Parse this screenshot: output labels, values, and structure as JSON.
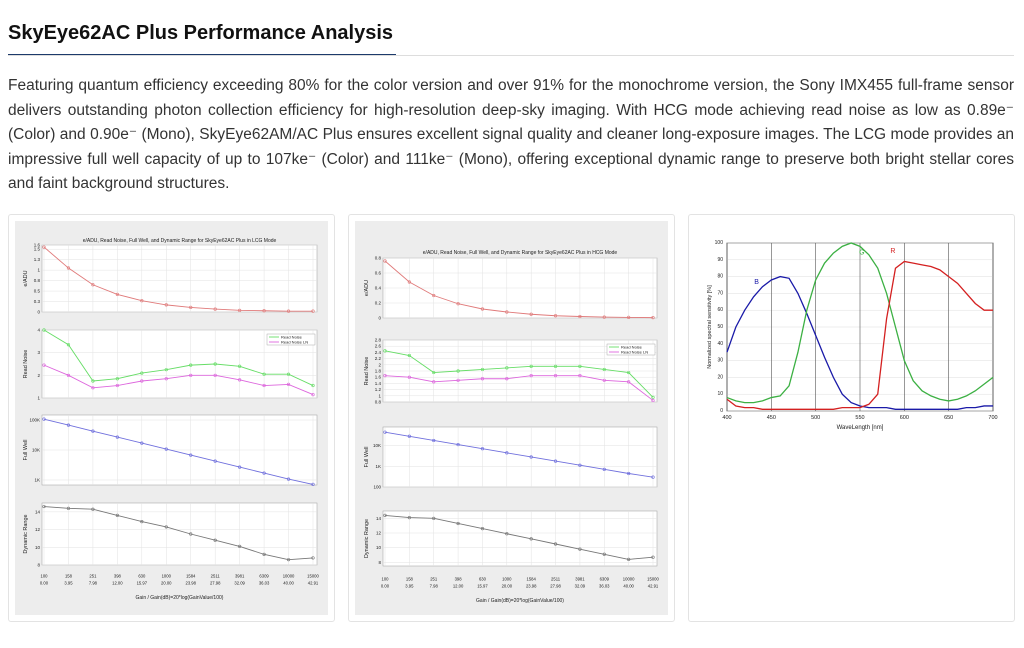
{
  "header": {
    "title": "SkyEye62AC Plus Performance Analysis"
  },
  "paragraph": "Featuring quantum efficiency exceeding 80% for the color version and over 91% for the monochrome version, the Sony IMX455 full-frame sensor delivers outstanding photon collection efficiency for high-resolution deep-sky imaging. With HCG mode achieving read noise as low as 0.89e⁻ (Color) and 0.90e⁻ (Mono), SkyEye62AM/AC Plus ensures excellent signal quality and cleaner long-exposure images. The LCG mode provides an impressive full well capacity of up to 107ke⁻ (Color) and 111ke⁻ (Mono), offering exceptional dynamic range to preserve both bright stellar cores and faint background structures.",
  "chart_data": [
    {
      "type": "multi-line",
      "title": "e/ADU, Read Noise, Full Well, and Dynamic Range for SkyEye62AC Plus in LCG Mode",
      "categories": [
        "100",
        "158",
        "251",
        "398",
        "630",
        "1000",
        "1584",
        "2511",
        "3981",
        "6309",
        "10000",
        "15000"
      ],
      "category_db": [
        "0.00",
        "3.95",
        "7.98",
        "12.00",
        "15.97",
        "20.00",
        "23.98",
        "27.98",
        "32.09",
        "36.03",
        "40.00",
        "42.91"
      ],
      "xlabel": "Gain / Gain(dB)=20*log(GainValue/100)",
      "grid": true,
      "panels": [
        {
          "ylabel": "e/ADU",
          "ylim": [
            0,
            1.6
          ],
          "yticks": [
            0,
            {
              "value": 0.25,
              "label": "0.3"
            },
            0.5,
            {
              "value": 0.75,
              "label": "0.8"
            },
            1,
            {
              "value": 1.25,
              "label": "1.3"
            },
            1.5,
            1.6
          ],
          "series": [
            {
              "color": "#e07a7a",
              "values": [
                1.55,
                1.05,
                0.65,
                0.42,
                0.27,
                0.17,
                0.11,
                0.07,
                0.04,
                0.03,
                0.02,
                0.02
              ]
            }
          ]
        },
        {
          "ylabel": "Read Noise",
          "ylim": [
            1,
            4
          ],
          "yticks": [
            1,
            2,
            3,
            4
          ],
          "series": [
            {
              "name": "Read Noise",
              "color": "#66dd66",
              "values": [
                4.0,
                3.35,
                1.75,
                1.85,
                2.1,
                2.25,
                2.45,
                2.5,
                2.4,
                2.05,
                2.05,
                1.55
              ]
            },
            {
              "name": "Read Noise LN",
              "color": "#dd66dd",
              "values": [
                2.45,
                2.0,
                1.45,
                1.55,
                1.75,
                1.85,
                2.0,
                2.0,
                1.8,
                1.55,
                1.6,
                1.15
              ]
            }
          ]
        },
        {
          "ylabel": "Full Well",
          "log": true,
          "ylim": [
            680,
            147000
          ],
          "yticks": [
            {
              "value": 1000,
              "label": "1K"
            },
            {
              "value": 10000,
              "label": "10K"
            },
            {
              "value": 100000,
              "label": "100K"
            }
          ],
          "series": [
            {
              "color": "#7070dd",
              "values": [
                107000,
                67700,
                42600,
                26900,
                17000,
                10700,
                6750,
                4260,
                2690,
                1700,
                1070,
                713
              ]
            }
          ]
        },
        {
          "ylabel": "Dynamic Range",
          "ylim": [
            8,
            15
          ],
          "yticks": [
            8,
            10,
            12,
            14
          ],
          "series": [
            {
              "color": "#777777",
              "values": [
                14.6,
                14.4,
                14.3,
                13.6,
                12.9,
                12.3,
                11.5,
                10.8,
                10.1,
                9.2,
                8.6,
                8.8
              ]
            }
          ]
        }
      ]
    },
    {
      "type": "multi-line",
      "title": "e/ADU, Read Noise, Full Well, and Dynamic Range for SkyEye62AC Plus in HCG Mode",
      "categories": [
        "100",
        "158",
        "251",
        "398",
        "630",
        "1000",
        "1584",
        "2511",
        "3981",
        "6309",
        "10000",
        "15000"
      ],
      "category_db": [
        "0.00",
        "3.95",
        "7.98",
        "12.00",
        "15.97",
        "20.00",
        "23.98",
        "27.98",
        "32.09",
        "36.03",
        "40.00",
        "42.91"
      ],
      "xlabel": "Gain / Gain(dB)=20*log(GainValue/100)",
      "grid": true,
      "panels": [
        {
          "ylabel": "e/ADU",
          "ylim": [
            0,
            0.8
          ],
          "yticks": [
            0,
            0.2,
            0.4,
            0.6,
            0.8
          ],
          "series": [
            {
              "color": "#e07a7a",
              "values": [
                0.76,
                0.48,
                0.3,
                0.19,
                0.12,
                0.08,
                0.05,
                0.03,
                0.02,
                0.012,
                0.008,
                0.005
              ]
            }
          ]
        },
        {
          "ylabel": "Read Noise",
          "ylim": [
            0.8,
            2.8
          ],
          "yticks": [
            0.8,
            1,
            1.2,
            1.4,
            1.6,
            1.8,
            2,
            2.2,
            2.4,
            2.6,
            2.8
          ],
          "series": [
            {
              "name": "Read Noise",
              "color": "#66dd66",
              "values": [
                2.45,
                2.3,
                1.75,
                1.8,
                1.85,
                1.9,
                1.95,
                1.95,
                1.95,
                1.85,
                1.75,
                0.95
              ]
            },
            {
              "name": "Read Noise LN",
              "color": "#dd66dd",
              "values": [
                1.65,
                1.6,
                1.45,
                1.5,
                1.55,
                1.55,
                1.65,
                1.65,
                1.65,
                1.5,
                1.45,
                0.85
              ]
            }
          ]
        },
        {
          "ylabel": "Full Well",
          "log": true,
          "ylim": [
            100,
            80000
          ],
          "yticks": [
            100,
            {
              "value": 1000,
              "label": "1K"
            },
            {
              "value": 10000,
              "label": "10K"
            }
          ],
          "series": [
            {
              "color": "#7070dd",
              "values": [
                45000,
                28500,
                17900,
                11300,
                7140,
                4500,
                2840,
                1790,
                1130,
                713,
                450,
                300
              ]
            }
          ]
        },
        {
          "ylabel": "Dynamic Range",
          "ylim": [
            7.5,
            15
          ],
          "yticks": [
            8,
            10,
            12,
            14
          ],
          "series": [
            {
              "color": "#777777",
              "values": [
                14.4,
                14.1,
                14.0,
                13.3,
                12.6,
                11.9,
                11.2,
                10.5,
                9.8,
                9.1,
                8.4,
                8.7
              ]
            }
          ]
        }
      ]
    },
    {
      "type": "line",
      "xlabel": "WaveLength [nm]",
      "ylabel": "Normalized spectral sensitivity [%]",
      "grid": true,
      "x": [
        400,
        410,
        420,
        430,
        440,
        450,
        460,
        470,
        480,
        490,
        500,
        510,
        520,
        530,
        540,
        550,
        560,
        570,
        580,
        590,
        600,
        610,
        620,
        630,
        640,
        650,
        660,
        670,
        680,
        690,
        700
      ],
      "xlim": [
        400,
        700
      ],
      "xticks": [
        400,
        450,
        500,
        550,
        600,
        650,
        700
      ],
      "ylim": [
        0,
        100
      ],
      "yticks": [
        0,
        10,
        20,
        30,
        40,
        50,
        60,
        70,
        80,
        90,
        100
      ],
      "series": [
        {
          "name": "B",
          "color": "#1a1aa8",
          "values": [
            35,
            50,
            60,
            68,
            74,
            78,
            80,
            79,
            70,
            58,
            45,
            32,
            20,
            10,
            5,
            3,
            2,
            2,
            2,
            1,
            1,
            1,
            1,
            1,
            1,
            1,
            1,
            2,
            2,
            3,
            3
          ]
        },
        {
          "name": "G",
          "color": "#3cb043",
          "values": [
            8,
            6,
            5,
            5,
            6,
            8,
            9,
            15,
            35,
            60,
            78,
            88,
            94,
            98,
            100,
            98,
            93,
            85,
            70,
            50,
            30,
            18,
            12,
            9,
            7,
            6,
            7,
            9,
            12,
            16,
            20
          ]
        },
        {
          "name": "R",
          "color": "#d42020",
          "values": [
            7,
            3,
            2,
            2,
            1,
            1,
            1,
            1,
            1,
            1,
            1,
            1,
            1,
            2,
            2,
            2,
            4,
            10,
            55,
            85,
            89,
            88,
            87,
            86,
            84,
            80,
            76,
            70,
            64,
            60,
            60
          ]
        }
      ]
    }
  ]
}
